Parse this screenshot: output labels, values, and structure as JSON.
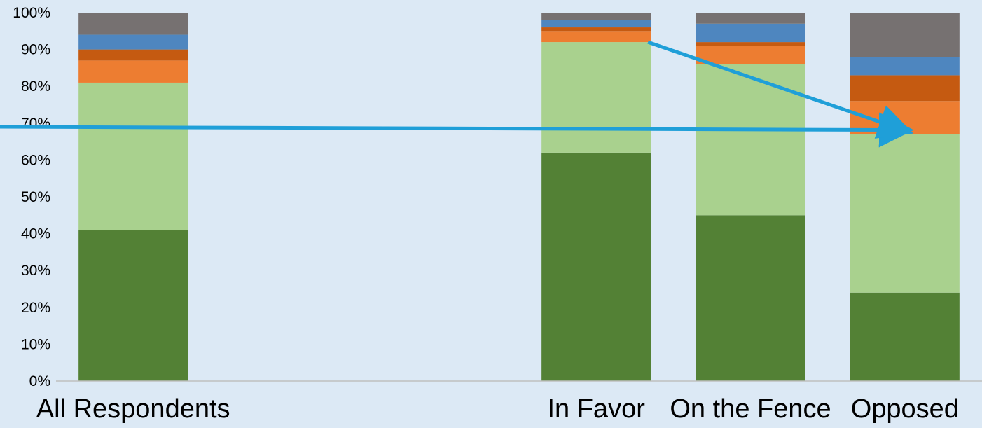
{
  "chart_data": {
    "type": "bar",
    "stacked": true,
    "categories": [
      "All Respondents",
      "",
      "",
      "In Favor",
      "On the Fence",
      "Opposed"
    ],
    "ylim": [
      0,
      100
    ],
    "yticks": [
      "0%",
      "10%",
      "20%",
      "30%",
      "40%",
      "50%",
      "60%",
      "70%",
      "80%",
      "90%",
      "100%"
    ],
    "series": [
      {
        "color": "#538135",
        "values": [
          41,
          null,
          null,
          62,
          45,
          24
        ]
      },
      {
        "color": "#a9d18e",
        "values": [
          40,
          null,
          null,
          30,
          41,
          43
        ]
      },
      {
        "color": "#ed7d31",
        "values": [
          6,
          null,
          null,
          3,
          5,
          9
        ]
      },
      {
        "color": "#c55a11",
        "values": [
          3,
          null,
          null,
          1,
          1,
          7
        ]
      },
      {
        "color": "#4e86bf",
        "values": [
          4,
          null,
          null,
          2,
          5,
          5
        ]
      },
      {
        "color": "#767171",
        "values": [
          6,
          null,
          null,
          2,
          3,
          12
        ]
      }
    ],
    "grid": false,
    "legend": "none",
    "annotations": [
      {
        "type": "arrow",
        "from": {
          "category": "left-edge",
          "y": 69
        },
        "to": {
          "category": "Opposed",
          "y": 67
        },
        "color": "#1f9fd8"
      },
      {
        "type": "arrow",
        "from": {
          "category": "In Favor",
          "y": 92
        },
        "to": {
          "category": "Opposed",
          "y": 67
        },
        "color": "#1f9fd8"
      }
    ]
  }
}
